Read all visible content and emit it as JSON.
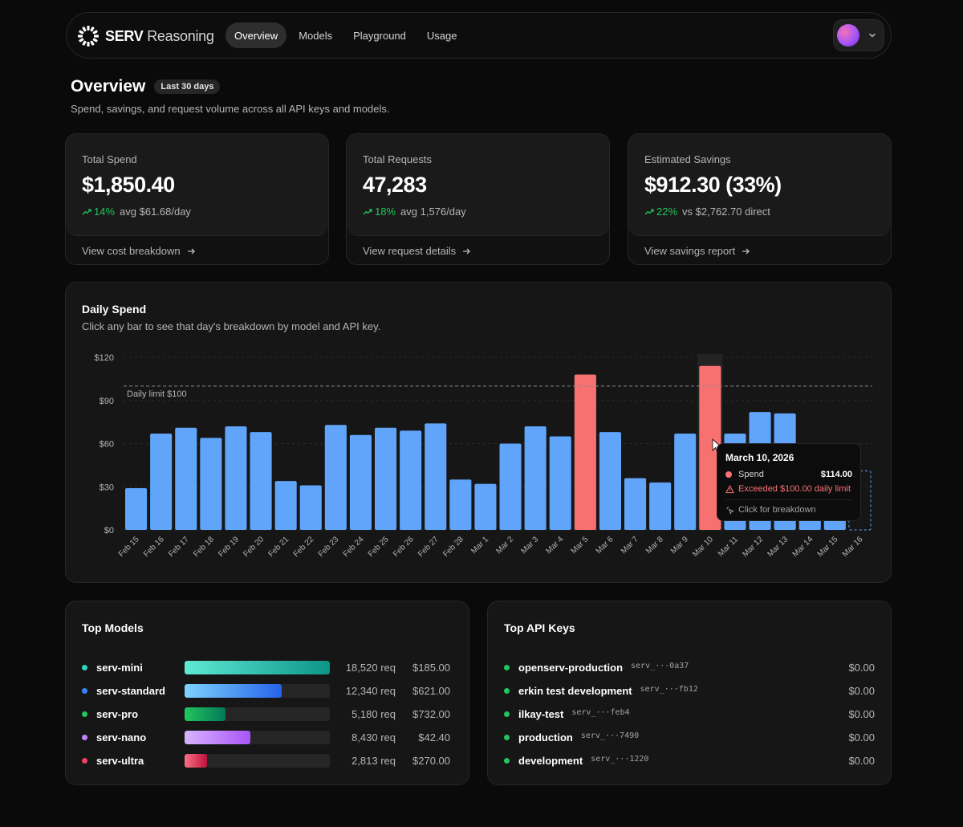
{
  "app": {
    "brand_bold": "SERV",
    "brand_light": "Reasoning"
  },
  "nav": {
    "tabs": [
      {
        "label": "Overview",
        "active": true
      },
      {
        "label": "Models"
      },
      {
        "label": "Playground"
      },
      {
        "label": "Usage"
      }
    ]
  },
  "page": {
    "title": "Overview",
    "badge": "Last 30 days",
    "subtitle": "Spend, savings, and request volume across all API keys and models."
  },
  "stats": [
    {
      "label": "Total Spend",
      "value": "$1,850.40",
      "trend": "14%",
      "meta": "avg $61.68/day",
      "link": "View cost breakdown"
    },
    {
      "label": "Total Requests",
      "value": "47,283",
      "trend": "18%",
      "meta": "avg 1,576/day",
      "link": "View request details"
    },
    {
      "label": "Estimated Savings",
      "value": "$912.30 (33%)",
      "trend": "22%",
      "meta": "vs $2,762.70 direct",
      "link": "View savings report"
    }
  ],
  "daily_spend": {
    "title": "Daily Spend",
    "subtitle": "Click any bar to see that day's breakdown by model and API key."
  },
  "chart_data": {
    "type": "bar",
    "categories": [
      "Feb 15",
      "Feb 16",
      "Feb 17",
      "Feb 18",
      "Feb 19",
      "Feb 20",
      "Feb 21",
      "Feb 22",
      "Feb 23",
      "Feb 24",
      "Feb 25",
      "Feb 26",
      "Feb 27",
      "Feb 28",
      "Mar 1",
      "Mar 2",
      "Mar 3",
      "Mar 4",
      "Mar 5",
      "Mar 6",
      "Mar 7",
      "Mar 8",
      "Mar 9",
      "Mar 10",
      "Mar 11",
      "Mar 12",
      "Mar 13",
      "Mar 14",
      "Mar 15",
      "Mar 16"
    ],
    "values": [
      29,
      67,
      71,
      64,
      72,
      68,
      34,
      31,
      73,
      66,
      71,
      69,
      74,
      35,
      32,
      60,
      72,
      65,
      108,
      68,
      36,
      33,
      67,
      114,
      67,
      82,
      81,
      57,
      57,
      null
    ],
    "ylim": [
      0,
      120
    ],
    "yticks": [
      "$0",
      "$30",
      "$60",
      "$90",
      "$120"
    ],
    "limit": {
      "value": 100,
      "label": "Daily limit $100"
    },
    "colors": {
      "normal": "#60a5fa",
      "exceeded": "#f87171"
    },
    "highlight": "Mar 10"
  },
  "tooltip": {
    "date": "March 10, 2026",
    "series": "Spend",
    "value": "$114.00",
    "warning": "Exceeded $100.00 daily limit",
    "action": "Click for breakdown"
  },
  "top_models": {
    "title": "Top Models",
    "items": [
      {
        "name": "serv-mini",
        "requests": "18,520 req",
        "cost": "$185.00",
        "share": 1.0,
        "dot": "#2dd4bf",
        "from": "#5eead4",
        "to": "#0d9488"
      },
      {
        "name": "serv-standard",
        "requests": "12,340 req",
        "cost": "$621.00",
        "share": 0.666,
        "dot": "#3b82f6",
        "from": "#7dd3fc",
        "to": "#2563eb"
      },
      {
        "name": "serv-pro",
        "requests": "5,180 req",
        "cost": "$732.00",
        "share": 0.28,
        "dot": "#22c55e",
        "from": "#22c55e",
        "to": "#047857"
      },
      {
        "name": "serv-nano",
        "requests": "8,430 req",
        "cost": "$42.40",
        "share": 0.455,
        "dot": "#c084fc",
        "from": "#d8b4fe",
        "to": "#a855f7"
      },
      {
        "name": "serv-ultra",
        "requests": "2,813 req",
        "cost": "$270.00",
        "share": 0.152,
        "dot": "#f43f5e",
        "from": "#fb7185",
        "to": "#be123c"
      }
    ]
  },
  "top_keys": {
    "title": "Top API Keys",
    "items": [
      {
        "name": "openserv-production",
        "id": "serv_···0a37",
        "cost": "$0.00"
      },
      {
        "name": "erkin test development",
        "id": "serv_···fb12",
        "cost": "$0.00"
      },
      {
        "name": "ilkay-test",
        "id": "serv_···feb4",
        "cost": "$0.00"
      },
      {
        "name": "production",
        "id": "serv_···7490",
        "cost": "$0.00"
      },
      {
        "name": "development",
        "id": "serv_···1220",
        "cost": "$0.00"
      }
    ],
    "dot_color": "#22c55e"
  }
}
